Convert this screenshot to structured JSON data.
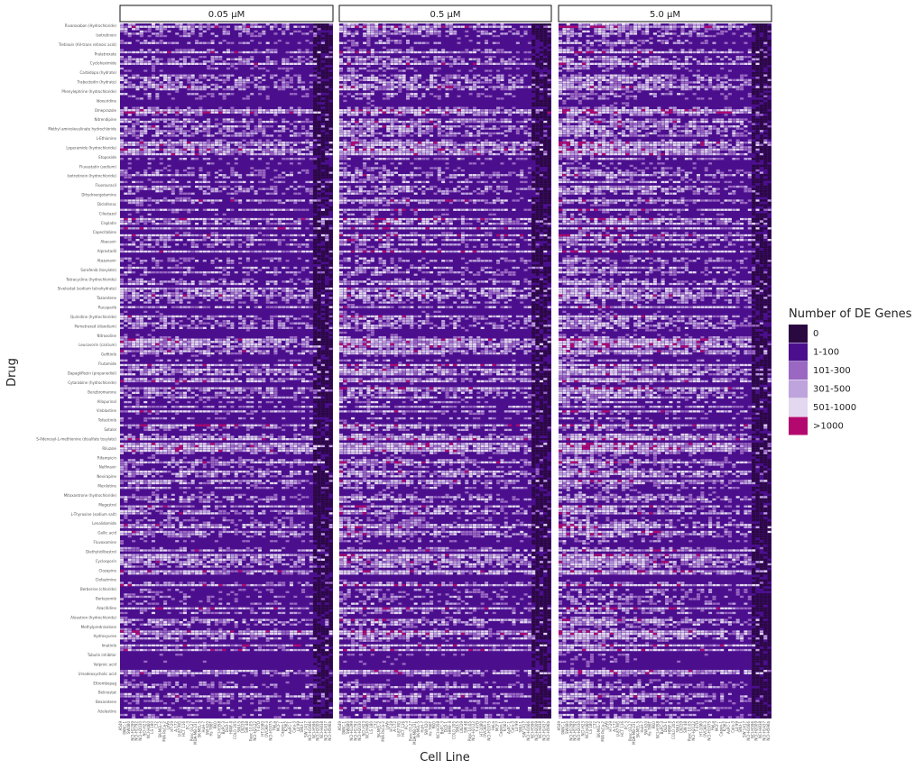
{
  "chart_data": {
    "type": "heatmap",
    "title": "",
    "xlabel": "Cell Line",
    "ylabel": "Drug",
    "facets": [
      "0.05 µM",
      "0.5 µM",
      "5.0 µM"
    ],
    "legend": {
      "title": "Number of DE Genes",
      "placement": "right",
      "bins": [
        {
          "label": "0",
          "color": "#2a0840"
        },
        {
          "label": "1-100",
          "color": "#4b0f8e"
        },
        {
          "label": "101-300",
          "color": "#9a68c2"
        },
        {
          "label": "301-500",
          "color": "#bea3dc"
        },
        {
          "label": "501-1000",
          "color": "#e3d8ef"
        },
        {
          "label": ">1000",
          "color": "#b3096f"
        }
      ]
    },
    "cell_lines": [
      "A549",
      "PANC-1",
      "SW480",
      "NCI-H1299",
      "NCI-H1792",
      "NCI-H2030",
      "NCI-H23",
      "NCI-H460",
      "LS 180",
      "C32",
      "SK-MEL-2",
      "MIA PaCa-2",
      "LoVo",
      "HT-29",
      "A-172",
      "U-87 MG",
      "HCT 116",
      "PC-3",
      "Panc 03.27",
      "MDA-MB-231",
      "SK-MEL-5",
      "HuH-7",
      "SW 620",
      "Hs 766T",
      "RKO",
      "NCI-H358",
      "BxPC-3",
      "DLD-1",
      "HPAF-II",
      "COLO 205",
      "SNU-5",
      "LN229",
      "SW 48",
      "Panc 10.05",
      "NCI-H2122",
      "T-47D",
      "HT-1080",
      "OVCAR-3",
      "NCI-H1975",
      "HeLa",
      "MCF7",
      "Capan-1",
      "K-562",
      "AsPC-1",
      "Calu-3",
      "LU 99",
      "SNU-1",
      "SW 1417",
      "NCI-H1666",
      "NCI-H596",
      "NCI-H2009",
      "NCI-H838",
      "NCI-H1437",
      "NCI-H596b"
    ],
    "drug_labels_visible": [
      "Rivaroxaban (Hydrochloride)",
      "Isotretinoin",
      "Tretinoin (All-trans retinoic acid)",
      "Pralatrexate",
      "Cycloheximide",
      "Carbidopa (hydrate)",
      "Trabectedin (hydrate)",
      "Phenylephrine (hydrochloride)",
      "Idoxuridine",
      "Omeprazole",
      "Nitrendipine",
      "Methyl aminolevulinate hydrochloride",
      "L-Ethionine",
      "Loperamide (hydrochloride)",
      "Etoposide",
      "Fluvastatin (sodium)",
      "Isotretinoin (hydrochloride)",
      "Fluorouracil",
      "Dihydroergotamine",
      "Diclofenac",
      "Cilostazol",
      "Cisplatin",
      "Capecitabine",
      "Abacavir",
      "Alprostadil",
      "Atazanavir",
      "Sorafenib (tosylate)",
      "Tetracycline (hydrochloride)",
      "Sivelestat (sodium tetrahydrate)",
      "Tazarotene",
      "Rucaparib",
      "Quinidine (hydrochloride)",
      "Pemetrexed (disodium)",
      "Nitroxoline",
      "Leucovorin (calcium)",
      "Gefitinib",
      "Flutamide",
      "Dapagliflozin (propanediol)",
      "Cytarabine (hydrochloride)",
      "Benzbromarone",
      "Allopurinol",
      "Vinblastine",
      "Tofacitinib",
      "Sotalol",
      "S-Adenosyl-L-methionine (disulfate tosylate)",
      "Riluzole",
      "Rifampicin",
      "Nelfinavir",
      "Nevirapine",
      "Mexiletine",
      "Mitoxantrone (hydrochloride)",
      "Megestrol",
      "L-Thyroxine (sodium salt)",
      "Lenalidomide",
      "Gallic acid",
      "Fluvoxamine",
      "Diethylstilbestrol",
      "Cyclosporin",
      "Clozapine",
      "Clofazimine",
      "Berberine (chloride)",
      "Bortezomib",
      "Azacitidine",
      "Alosetron (hydrochloride)",
      "Methylprednisolone",
      "Hydroxyurea",
      "Imatinib",
      "Tubulin inhibitor",
      "Valproic acid",
      "Ursodeoxycholic acid",
      "Eltrombopag",
      "Belinostat",
      "Bexarotene",
      "Azelastine"
    ]
  }
}
